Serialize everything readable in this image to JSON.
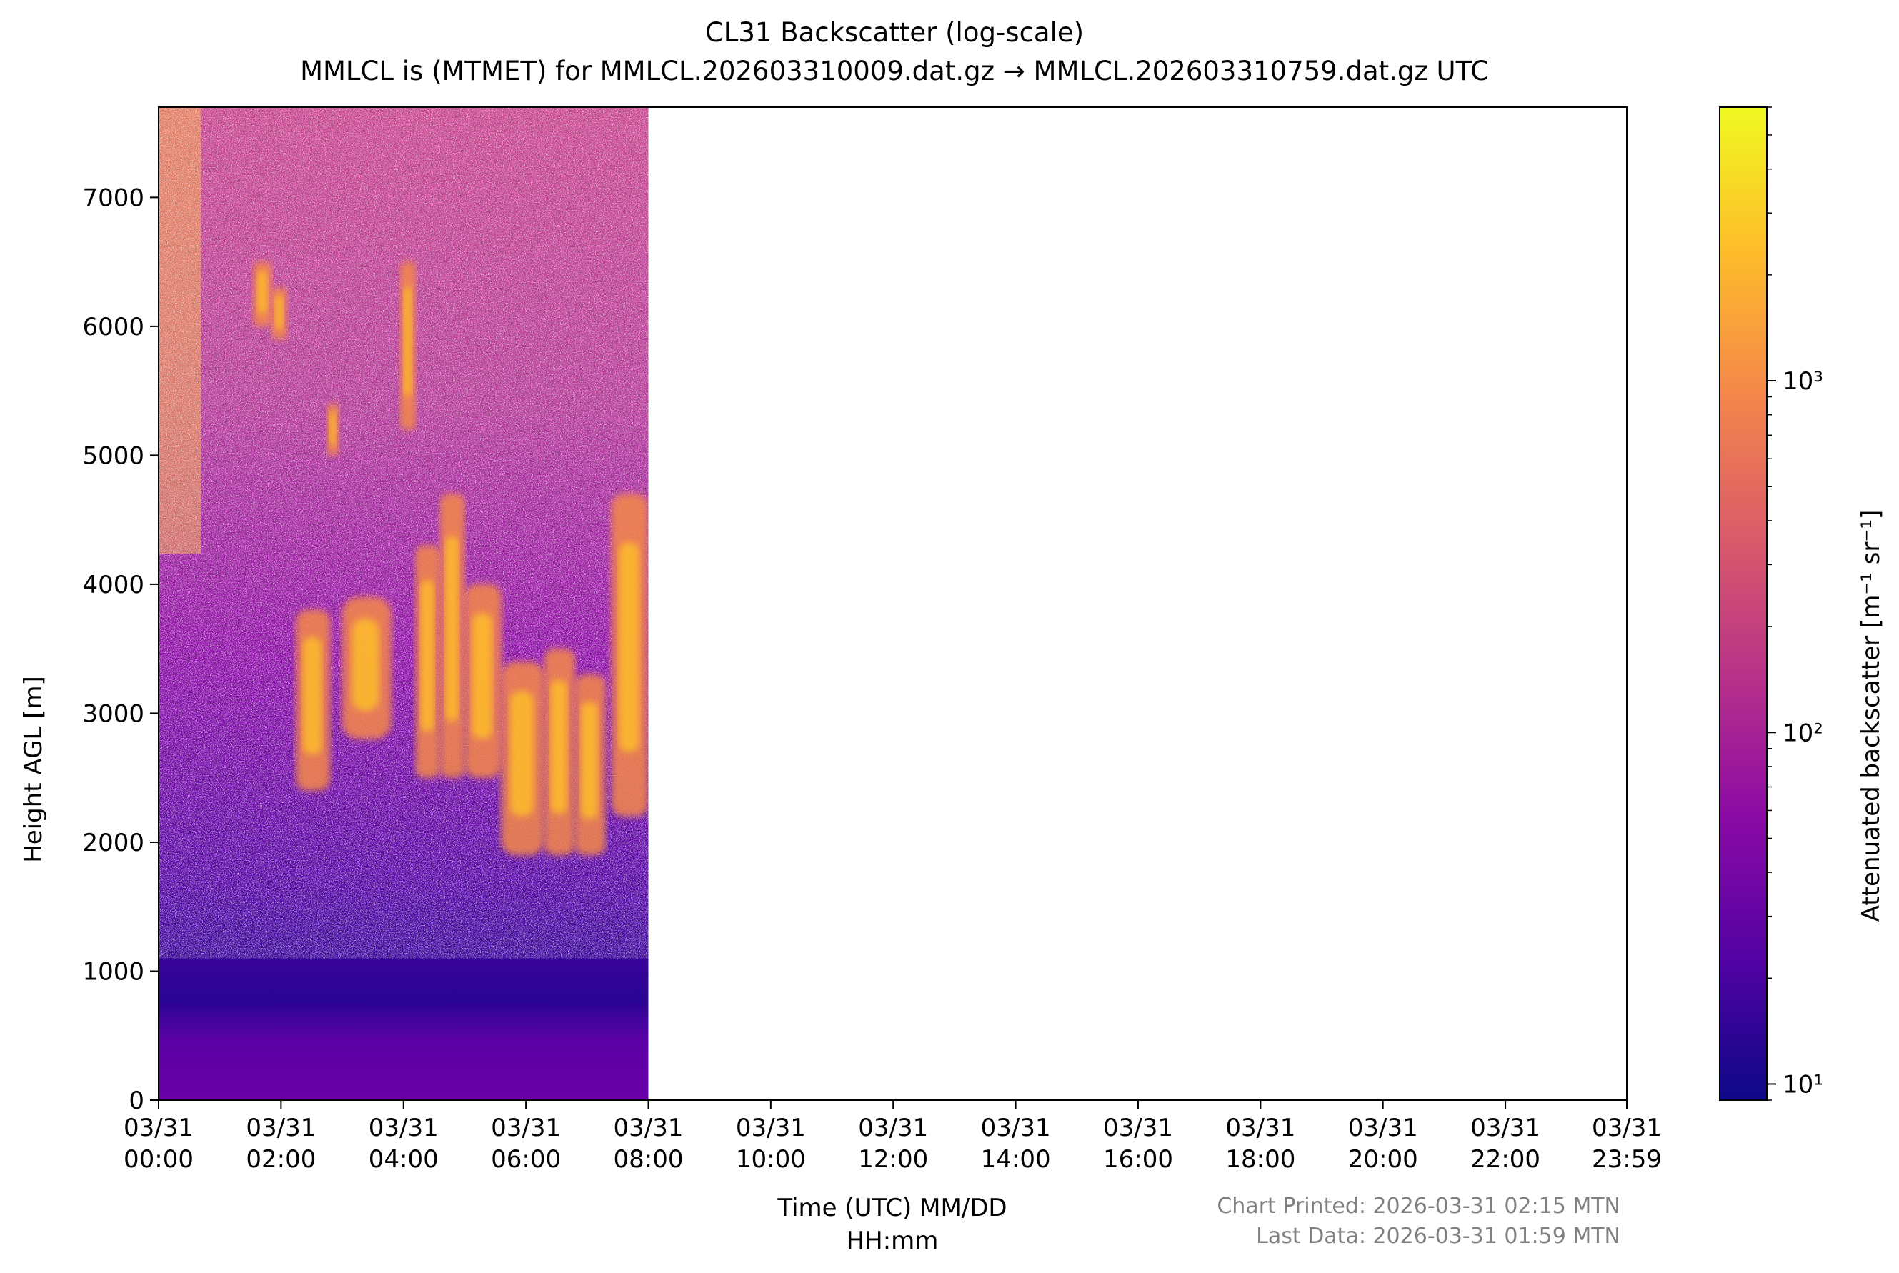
{
  "chart_data": {
    "type": "heatmap",
    "title": "CL31 Backscatter (log-scale)",
    "subtitle": "MMLCL is (MTMET) for MMLCL.202603310009.dat.gz → MMLCL.202603310759.dat.gz UTC",
    "xlabel_line1": "Time (UTC) MM/DD",
    "xlabel_line2": "HH:mm",
    "ylabel": "Height AGL [m]",
    "x_range_hours": [
      0,
      23.983
    ],
    "data_end_hours": 8.0,
    "ylim": [
      0,
      7700
    ],
    "x_ticks": [
      {
        "value": 0,
        "date": "03/31",
        "time": "00:00"
      },
      {
        "value": 2,
        "date": "03/31",
        "time": "02:00"
      },
      {
        "value": 4,
        "date": "03/31",
        "time": "04:00"
      },
      {
        "value": 6,
        "date": "03/31",
        "time": "06:00"
      },
      {
        "value": 8,
        "date": "03/31",
        "time": "08:00"
      },
      {
        "value": 10,
        "date": "03/31",
        "time": "10:00"
      },
      {
        "value": 12,
        "date": "03/31",
        "time": "12:00"
      },
      {
        "value": 14,
        "date": "03/31",
        "time": "14:00"
      },
      {
        "value": 16,
        "date": "03/31",
        "time": "16:00"
      },
      {
        "value": 18,
        "date": "03/31",
        "time": "18:00"
      },
      {
        "value": 20,
        "date": "03/31",
        "time": "20:00"
      },
      {
        "value": 22,
        "date": "03/31",
        "time": "22:00"
      },
      {
        "value": 23.983,
        "date": "03/31",
        "time": "23:59"
      }
    ],
    "y_ticks": [
      0,
      1000,
      2000,
      3000,
      4000,
      5000,
      6000,
      7000
    ],
    "colorbar": {
      "scale": "log",
      "range": [
        9,
        6000
      ],
      "label": "Attenuated backscatter [m⁻¹ sr⁻¹]",
      "ticks": [
        {
          "value": 10,
          "label": "10¹"
        },
        {
          "value": 100,
          "label": "10²"
        },
        {
          "value": 1000,
          "label": "10³"
        }
      ],
      "colormap": "plasma",
      "stops": [
        "#0d0887",
        "#5302a3",
        "#8b0aa5",
        "#b83289",
        "#db5c68",
        "#f48849",
        "#febd2a",
        "#f0f921"
      ]
    },
    "cloud_layers": [
      {
        "t0": 1.55,
        "t1": 1.85,
        "y0": 6000,
        "y1": 6500
      },
      {
        "t0": 1.85,
        "t1": 2.1,
        "y0": 5900,
        "y1": 6300
      },
      {
        "t0": 2.75,
        "t1": 2.95,
        "y0": 5000,
        "y1": 5400
      },
      {
        "t0": 3.95,
        "t1": 4.2,
        "y0": 5200,
        "y1": 6500
      },
      {
        "t0": 2.25,
        "t1": 2.8,
        "y0": 2400,
        "y1": 3800
      },
      {
        "t0": 3.0,
        "t1": 3.8,
        "y0": 2800,
        "y1": 3900
      },
      {
        "t0": 4.2,
        "t1": 4.6,
        "y0": 2500,
        "y1": 4300
      },
      {
        "t0": 4.6,
        "t1": 5.0,
        "y0": 2500,
        "y1": 4700
      },
      {
        "t0": 5.0,
        "t1": 5.6,
        "y0": 2500,
        "y1": 4000
      },
      {
        "t0": 5.6,
        "t1": 6.3,
        "y0": 1900,
        "y1": 3400
      },
      {
        "t0": 6.3,
        "t1": 6.8,
        "y0": 1900,
        "y1": 3500
      },
      {
        "t0": 6.8,
        "t1": 7.3,
        "y0": 1900,
        "y1": 3300
      },
      {
        "t0": 7.4,
        "t1": 8.0,
        "y0": 2200,
        "y1": 4700
      }
    ]
  },
  "footer": {
    "printed": "Chart Printed: 2026-03-31 02:15 MTN",
    "last_data": "Last Data: 2026-03-31 01:59 MTN"
  }
}
